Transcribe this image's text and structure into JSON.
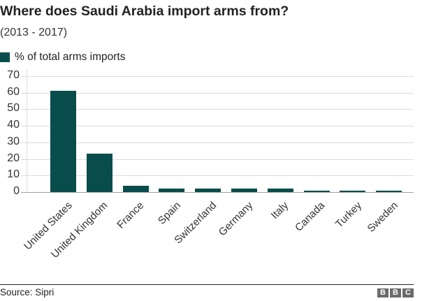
{
  "header": {
    "title": "Where does Saudi Arabia import arms from?",
    "subtitle": "(2013 - 2017)"
  },
  "legend": {
    "label": "% of total arms imports",
    "color": "#084c4c"
  },
  "footer": {
    "source": "Source: Sipri",
    "logo_letters": [
      "B",
      "B",
      "C"
    ]
  },
  "chart_data": {
    "type": "bar",
    "title": "Where does Saudi Arabia import arms from?",
    "subtitle": "(2013 - 2017)",
    "xlabel": "",
    "ylabel": "",
    "categories": [
      "United States",
      "United Kingdom",
      "France",
      "Spain",
      "Switzerland",
      "Germany",
      "Italy",
      "Canada",
      "Turkey",
      "Sweden"
    ],
    "series": [
      {
        "name": "% of total arms imports",
        "color": "#084c4c",
        "values": [
          61,
          23,
          4,
          2,
          2,
          2,
          2,
          1,
          1,
          1
        ]
      }
    ],
    "yticks": [
      0,
      10,
      20,
      30,
      40,
      50,
      60,
      70
    ],
    "ylim": [
      0,
      70
    ],
    "grid": true,
    "legend_position": "top-left",
    "source": "Sipri"
  }
}
